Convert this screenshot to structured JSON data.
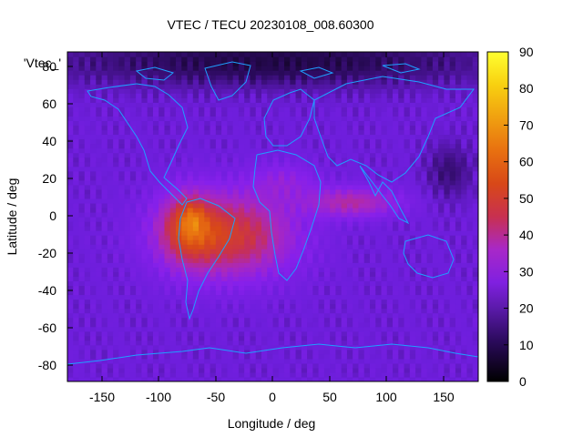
{
  "chart_data": {
    "type": "heatmap",
    "title": "VTEC / TECU 20230108_008.60300",
    "xlabel": "Longitude / deg",
    "ylabel": "Latitude / deg",
    "xlim": [
      -180,
      180
    ],
    "ylim": [
      -90,
      90
    ],
    "x_ticks": [
      -150,
      -100,
      -50,
      0,
      50,
      100,
      150
    ],
    "y_ticks": [
      -80,
      -60,
      -40,
      -20,
      0,
      20,
      40,
      60,
      80
    ],
    "colorbar": {
      "range": [
        0,
        90
      ],
      "ticks": [
        0,
        10,
        20,
        30,
        40,
        50,
        60,
        70,
        80,
        90
      ],
      "palette": "black-purple-red-orange-yellow"
    },
    "legend_label": "'Vtec_'",
    "grid": false,
    "features": {
      "peak_region": {
        "lon_range": [
          -120,
          50
        ],
        "lat_range": [
          -50,
          30
        ],
        "max_vtec": 80,
        "max_location": [
          -70,
          0
        ]
      },
      "secondary_band": {
        "lon_range": [
          30,
          110
        ],
        "lat_range": [
          -5,
          20
        ],
        "vtec": 45
      },
      "background_vtec": 20,
      "low_polar_north_vtec": 6,
      "land_outline_color": "#1ea0ff"
    }
  }
}
